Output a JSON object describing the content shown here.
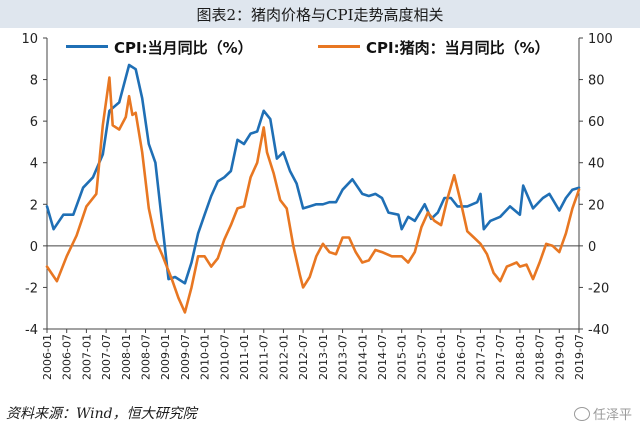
{
  "title": "图表2：猪肉价格与CPI走势高度相关",
  "source": "资料来源：Wind，恒大研究院",
  "watermark": "任泽平",
  "chart_data": {
    "type": "line",
    "grid": false,
    "legend_position": "top",
    "x_start": "2006-01",
    "x_end": "2019-07",
    "xtick_labels": [
      "2006-01",
      "2006-07",
      "2007-01",
      "2007-07",
      "2008-01",
      "2008-07",
      "2009-01",
      "2009-07",
      "2010-01",
      "2010-07",
      "2011-01",
      "2011-07",
      "2012-01",
      "2012-07",
      "2013-01",
      "2013-07",
      "2014-01",
      "2014-07",
      "2015-01",
      "2015-07",
      "2016-01",
      "2016-07",
      "2017-01",
      "2017-07",
      "2018-01",
      "2018-07",
      "2019-01",
      "2019-07"
    ],
    "y_left": {
      "min": -4,
      "max": 10,
      "ticks": [
        -4,
        -2,
        0,
        2,
        4,
        6,
        8,
        10
      ]
    },
    "y_right": {
      "min": -40,
      "max": 100,
      "ticks": [
        -40,
        -20,
        0,
        20,
        40,
        60,
        80,
        100
      ]
    },
    "series": [
      {
        "name": "CPI:当月同比（%）",
        "axis": "left",
        "color": "#1f6fb5",
        "points": [
          [
            "2006-01",
            1.9
          ],
          [
            "2006-03",
            0.8
          ],
          [
            "2006-06",
            1.5
          ],
          [
            "2006-09",
            1.5
          ],
          [
            "2006-12",
            2.8
          ],
          [
            "2007-03",
            3.3
          ],
          [
            "2007-06",
            4.4
          ],
          [
            "2007-08",
            6.5
          ],
          [
            "2007-11",
            6.9
          ],
          [
            "2008-02",
            8.7
          ],
          [
            "2008-04",
            8.5
          ],
          [
            "2008-06",
            7.1
          ],
          [
            "2008-08",
            4.9
          ],
          [
            "2008-10",
            4.0
          ],
          [
            "2008-12",
            1.2
          ],
          [
            "2009-02",
            -1.6
          ],
          [
            "2009-04",
            -1.5
          ],
          [
            "2009-07",
            -1.8
          ],
          [
            "2009-09",
            -0.8
          ],
          [
            "2009-11",
            0.6
          ],
          [
            "2010-01",
            1.5
          ],
          [
            "2010-03",
            2.4
          ],
          [
            "2010-05",
            3.1
          ],
          [
            "2010-07",
            3.3
          ],
          [
            "2010-09",
            3.6
          ],
          [
            "2010-11",
            5.1
          ],
          [
            "2011-01",
            4.9
          ],
          [
            "2011-03",
            5.4
          ],
          [
            "2011-05",
            5.5
          ],
          [
            "2011-07",
            6.5
          ],
          [
            "2011-09",
            6.1
          ],
          [
            "2011-11",
            4.2
          ],
          [
            "2012-01",
            4.5
          ],
          [
            "2012-03",
            3.6
          ],
          [
            "2012-05",
            3.0
          ],
          [
            "2012-07",
            1.8
          ],
          [
            "2012-09",
            1.9
          ],
          [
            "2012-11",
            2.0
          ],
          [
            "2013-01",
            2.0
          ],
          [
            "2013-03",
            2.1
          ],
          [
            "2013-05",
            2.1
          ],
          [
            "2013-07",
            2.7
          ],
          [
            "2013-10",
            3.2
          ],
          [
            "2014-01",
            2.5
          ],
          [
            "2014-03",
            2.4
          ],
          [
            "2014-05",
            2.5
          ],
          [
            "2014-07",
            2.3
          ],
          [
            "2014-09",
            1.6
          ],
          [
            "2014-12",
            1.5
          ],
          [
            "2015-01",
            0.8
          ],
          [
            "2015-03",
            1.4
          ],
          [
            "2015-05",
            1.2
          ],
          [
            "2015-08",
            2.0
          ],
          [
            "2015-10",
            1.3
          ],
          [
            "2015-12",
            1.6
          ],
          [
            "2016-02",
            2.3
          ],
          [
            "2016-04",
            2.3
          ],
          [
            "2016-06",
            1.9
          ],
          [
            "2016-09",
            1.9
          ],
          [
            "2016-12",
            2.1
          ],
          [
            "2017-01",
            2.5
          ],
          [
            "2017-02",
            0.8
          ],
          [
            "2017-04",
            1.2
          ],
          [
            "2017-07",
            1.4
          ],
          [
            "2017-10",
            1.9
          ],
          [
            "2018-01",
            1.5
          ],
          [
            "2018-02",
            2.9
          ],
          [
            "2018-05",
            1.8
          ],
          [
            "2018-08",
            2.3
          ],
          [
            "2018-10",
            2.5
          ],
          [
            "2019-01",
            1.7
          ],
          [
            "2019-03",
            2.3
          ],
          [
            "2019-05",
            2.7
          ],
          [
            "2019-07",
            2.8
          ]
        ]
      },
      {
        "name": "CPI:猪肉：当月同比（%）",
        "axis": "right",
        "color": "#e87722",
        "points": [
          [
            "2006-01",
            -10
          ],
          [
            "2006-04",
            -17
          ],
          [
            "2006-07",
            -5
          ],
          [
            "2006-10",
            5
          ],
          [
            "2007-01",
            19
          ],
          [
            "2007-04",
            25
          ],
          [
            "2007-06",
            58
          ],
          [
            "2007-08",
            81
          ],
          [
            "2007-09",
            58
          ],
          [
            "2007-11",
            56
          ],
          [
            "2008-01",
            62
          ],
          [
            "2008-02",
            72
          ],
          [
            "2008-03",
            63
          ],
          [
            "2008-04",
            64
          ],
          [
            "2008-06",
            45
          ],
          [
            "2008-08",
            18
          ],
          [
            "2008-10",
            3
          ],
          [
            "2008-12",
            -4
          ],
          [
            "2009-03",
            -16
          ],
          [
            "2009-05",
            -25
          ],
          [
            "2009-07",
            -32
          ],
          [
            "2009-09",
            -20
          ],
          [
            "2009-11",
            -5
          ],
          [
            "2010-01",
            -5
          ],
          [
            "2010-03",
            -10
          ],
          [
            "2010-05",
            -6
          ],
          [
            "2010-07",
            3
          ],
          [
            "2010-09",
            10
          ],
          [
            "2010-11",
            18
          ],
          [
            "2011-01",
            19
          ],
          [
            "2011-03",
            33
          ],
          [
            "2011-05",
            40
          ],
          [
            "2011-07",
            57
          ],
          [
            "2011-08",
            45
          ],
          [
            "2011-10",
            35
          ],
          [
            "2011-12",
            22
          ],
          [
            "2012-02",
            18
          ],
          [
            "2012-04",
            0
          ],
          [
            "2012-06",
            -14
          ],
          [
            "2012-07",
            -20
          ],
          [
            "2012-09",
            -15
          ],
          [
            "2012-11",
            -5
          ],
          [
            "2013-01",
            1
          ],
          [
            "2013-03",
            -3
          ],
          [
            "2013-05",
            -4
          ],
          [
            "2013-07",
            4
          ],
          [
            "2013-09",
            4
          ],
          [
            "2013-11",
            -3
          ],
          [
            "2014-01",
            -8
          ],
          [
            "2014-03",
            -7
          ],
          [
            "2014-05",
            -2
          ],
          [
            "2014-07",
            -3
          ],
          [
            "2014-10",
            -5
          ],
          [
            "2015-01",
            -5
          ],
          [
            "2015-03",
            -8
          ],
          [
            "2015-05",
            -3
          ],
          [
            "2015-07",
            9
          ],
          [
            "2015-09",
            16
          ],
          [
            "2015-11",
            12
          ],
          [
            "2016-01",
            10
          ],
          [
            "2016-03",
            23
          ],
          [
            "2016-05",
            34
          ],
          [
            "2016-07",
            21
          ],
          [
            "2016-09",
            7
          ],
          [
            "2016-11",
            4
          ],
          [
            "2017-01",
            1
          ],
          [
            "2017-03",
            -4
          ],
          [
            "2017-05",
            -13
          ],
          [
            "2017-07",
            -17
          ],
          [
            "2017-09",
            -10
          ],
          [
            "2017-12",
            -8
          ],
          [
            "2018-01",
            -10
          ],
          [
            "2018-03",
            -9
          ],
          [
            "2018-05",
            -16
          ],
          [
            "2018-07",
            -8
          ],
          [
            "2018-09",
            1
          ],
          [
            "2018-11",
            0
          ],
          [
            "2019-01",
            -3
          ],
          [
            "2019-03",
            6
          ],
          [
            "2019-05",
            18
          ],
          [
            "2019-07",
            27
          ]
        ]
      }
    ]
  }
}
